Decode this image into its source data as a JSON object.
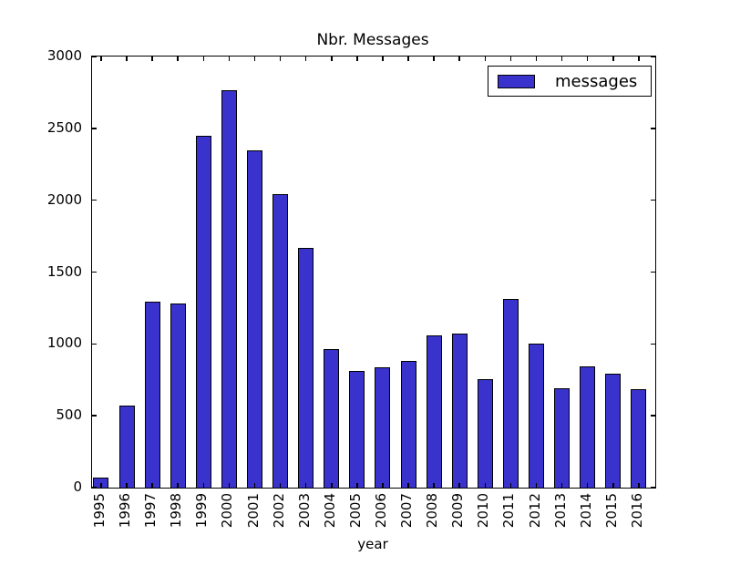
{
  "title": "Nbr. Messages",
  "legend": {
    "label": "messages",
    "swatch_color": "#3932cd"
  },
  "axes": {
    "xlabel": "year",
    "ylabel": ""
  },
  "colors": {
    "bar_fill": "#3932cd",
    "bar_edge": "#000000",
    "axis": "#000000",
    "background": "#ffffff"
  },
  "chart_data": {
    "type": "bar",
    "title": "Nbr. Messages",
    "xlabel": "year",
    "ylabel": "",
    "categories": [
      "1995",
      "1996",
      "1997",
      "1998",
      "1999",
      "2000",
      "2001",
      "2002",
      "2003",
      "2004",
      "2005",
      "2006",
      "2007",
      "2008",
      "2009",
      "2010",
      "2011",
      "2012",
      "2013",
      "2014",
      "2015",
      "2016"
    ],
    "values": [
      70,
      570,
      1295,
      1280,
      2450,
      2765,
      2345,
      2040,
      1670,
      965,
      810,
      835,
      880,
      1060,
      1075,
      755,
      1315,
      1000,
      690,
      845,
      795,
      685
    ],
    "series_name": "messages",
    "ylim": [
      0,
      3000
    ],
    "yticks": [
      0,
      500,
      1000,
      1500,
      2000,
      2500,
      3000
    ],
    "grid": false,
    "legend_position": "upper right",
    "tick_direction": "in",
    "x_tick_label_rotation": 90
  }
}
